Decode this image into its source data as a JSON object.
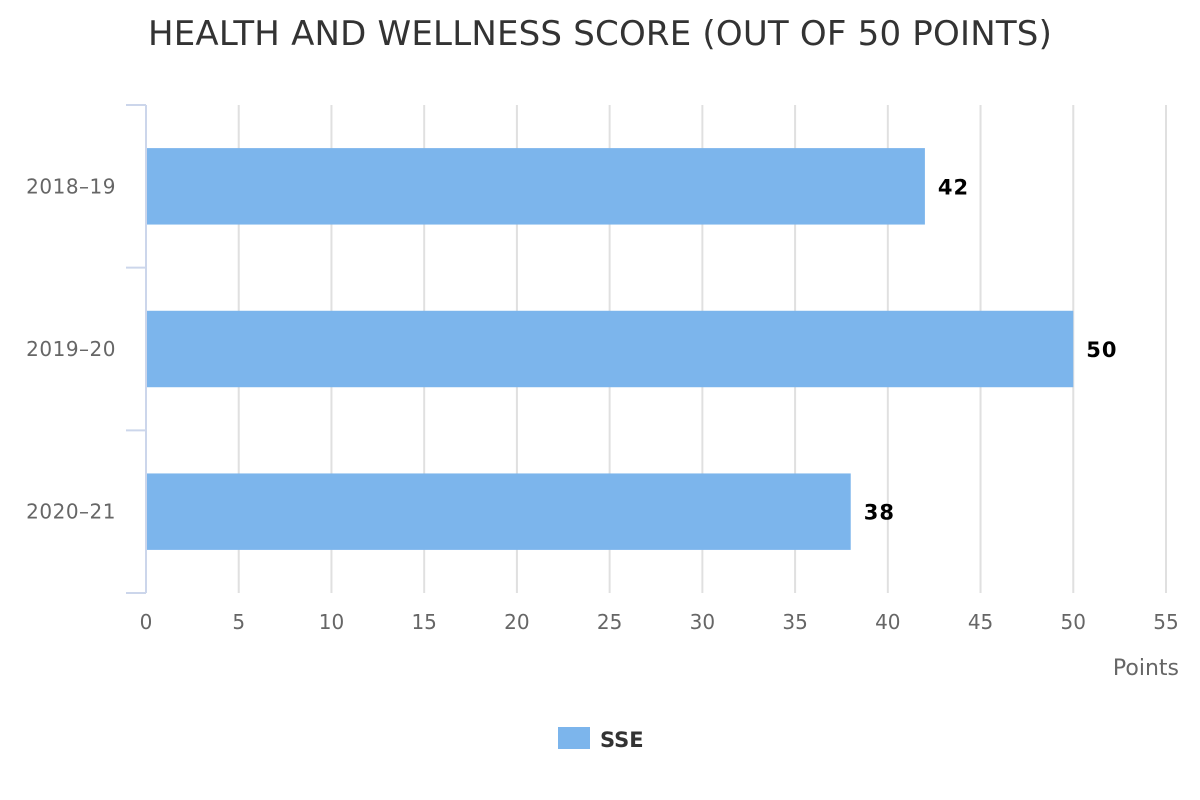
{
  "chart_data": {
    "type": "bar",
    "orientation": "horizontal",
    "title": "HEALTH AND WELLNESS SCORE (OUT OF 50 POINTS)",
    "categories": [
      "2018-19",
      "2019-20",
      "2020-21"
    ],
    "series": [
      {
        "name": "SSE",
        "values": [
          42,
          50,
          38
        ],
        "color": "#7cb5ec"
      }
    ],
    "xlabel": "Points",
    "ylabel": "",
    "xlim": [
      0,
      55
    ],
    "xticks": [
      0,
      5,
      10,
      15,
      20,
      25,
      30,
      35,
      40,
      45,
      50,
      55
    ],
    "grid": true,
    "legend": "bottom-center",
    "data_labels": true
  }
}
